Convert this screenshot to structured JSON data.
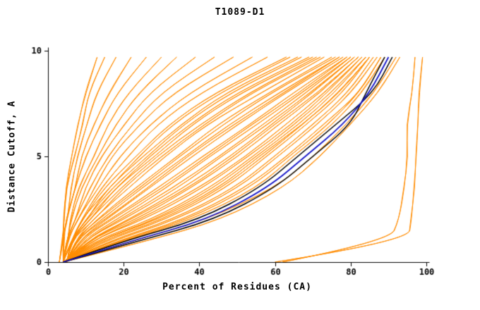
{
  "chart_data": {
    "type": "line",
    "title": "T1089-D1",
    "xlabel": "Percent of Residues (CA)",
    "ylabel": "Distance Cutoff, A",
    "xlim": [
      0,
      100
    ],
    "ylim": [
      0,
      10
    ],
    "xticks": [
      0,
      20,
      40,
      60,
      80,
      100
    ],
    "yticks": [
      0,
      5,
      10
    ],
    "legend": "none",
    "grid": false,
    "colors": {
      "model": "#ff8c00",
      "best": "#000000",
      "selected": "#1414c8",
      "axis": "#000000",
      "background": "#ffffff"
    },
    "y_anchors": [
      0,
      1,
      2,
      3.5,
      5,
      6.5,
      8,
      9.7
    ],
    "orange_models": [
      [
        4,
        18,
        36,
        52,
        63,
        73,
        82,
        88
      ],
      [
        4,
        16,
        33,
        49,
        60,
        70,
        79,
        86
      ],
      [
        4,
        20,
        38,
        55,
        65,
        75,
        83,
        89
      ],
      [
        4,
        14,
        30,
        46,
        57,
        67,
        77,
        85
      ],
      [
        4,
        12,
        27,
        43,
        54,
        65,
        75,
        84
      ],
      [
        4,
        11,
        24,
        40,
        52,
        63,
        73,
        83
      ],
      [
        4,
        10,
        22,
        37,
        49,
        60,
        71,
        82
      ],
      [
        5,
        9,
        20,
        34,
        46,
        58,
        69,
        81
      ],
      [
        5,
        9,
        18,
        31,
        43,
        55,
        67,
        80
      ],
      [
        5,
        8,
        16,
        29,
        41,
        53,
        65,
        79
      ],
      [
        5,
        8,
        15,
        27,
        38,
        50,
        63,
        78
      ],
      [
        5,
        7,
        14,
        25,
        36,
        48,
        61,
        77
      ],
      [
        5,
        7,
        13,
        23,
        34,
        45,
        58,
        75
      ],
      [
        5,
        7,
        12,
        21,
        31,
        42,
        56,
        73
      ],
      [
        5,
        6,
        11,
        19,
        29,
        40,
        53,
        71
      ],
      [
        5,
        6,
        10,
        18,
        27,
        37,
        50,
        69
      ],
      [
        4,
        6,
        10,
        16,
        25,
        35,
        47,
        66
      ],
      [
        4,
        6,
        9,
        15,
        23,
        32,
        44,
        63
      ],
      [
        4,
        6,
        9,
        14,
        21,
        29,
        40,
        58
      ],
      [
        4,
        5,
        8,
        13,
        19,
        27,
        37,
        54
      ],
      [
        4,
        5,
        8,
        12,
        17,
        24,
        33,
        49
      ],
      [
        4,
        5,
        7,
        11,
        16,
        22,
        30,
        44
      ],
      [
        4,
        5,
        7,
        10,
        14,
        20,
        27,
        39
      ],
      [
        4,
        5,
        6,
        9,
        13,
        18,
        24,
        34
      ],
      [
        4,
        5,
        6,
        8,
        12,
        16,
        21,
        30
      ],
      [
        4,
        4,
        5,
        7,
        10,
        14,
        18,
        26
      ],
      [
        4,
        4,
        5,
        7,
        9,
        12,
        16,
        22
      ],
      [
        3,
        4,
        5,
        6,
        8,
        10,
        13,
        18
      ],
      [
        3,
        4,
        4,
        5,
        7,
        9,
        11,
        15
      ],
      [
        3,
        4,
        4,
        5,
        6,
        8,
        10,
        13
      ],
      [
        4,
        22,
        42,
        60,
        70,
        79,
        86,
        92
      ],
      [
        4,
        26,
        46,
        62,
        72,
        80,
        87,
        93
      ],
      [
        4,
        17,
        34,
        50,
        61,
        71,
        80,
        87
      ],
      [
        4,
        15,
        31,
        47,
        58,
        68,
        78,
        85
      ],
      [
        4,
        13,
        28,
        44,
        55,
        66,
        76,
        84
      ],
      [
        5,
        10,
        23,
        38,
        50,
        61,
        72,
        82
      ],
      [
        5,
        9,
        19,
        33,
        45,
        57,
        68,
        80
      ],
      [
        5,
        8,
        17,
        30,
        42,
        54,
        66,
        79
      ],
      [
        5,
        7,
        15,
        26,
        37,
        49,
        62,
        77
      ],
      [
        5,
        7,
        13,
        24,
        35,
        46,
        59,
        76
      ],
      [
        5,
        6,
        12,
        20,
        30,
        41,
        54,
        72
      ],
      [
        5,
        6,
        11,
        18,
        28,
        38,
        51,
        70
      ],
      [
        4,
        6,
        10,
        17,
        26,
        36,
        48,
        67
      ],
      [
        4,
        6,
        9,
        16,
        24,
        33,
        45,
        64
      ],
      [
        4,
        19,
        37,
        53,
        64,
        74,
        82,
        88
      ],
      [
        4,
        13,
        29,
        45,
        56,
        67,
        77,
        85
      ],
      [
        5,
        11,
        25,
        41,
        53,
        64,
        74,
        83
      ],
      [
        5,
        10,
        21,
        36,
        48,
        59,
        70,
        81
      ],
      [
        60,
        95,
        96,
        97,
        97,
        98,
        98,
        99
      ],
      [
        62,
        90,
        93,
        94,
        95,
        95,
        96,
        97
      ]
    ],
    "black_models": [
      [
        4,
        20,
        40,
        56,
        66,
        76,
        86,
        91
      ],
      [
        4,
        24,
        44,
        60,
        70,
        80,
        84,
        89
      ]
    ],
    "blue_model": [
      [
        4,
        22,
        42,
        58,
        68,
        78,
        85,
        90
      ]
    ]
  }
}
